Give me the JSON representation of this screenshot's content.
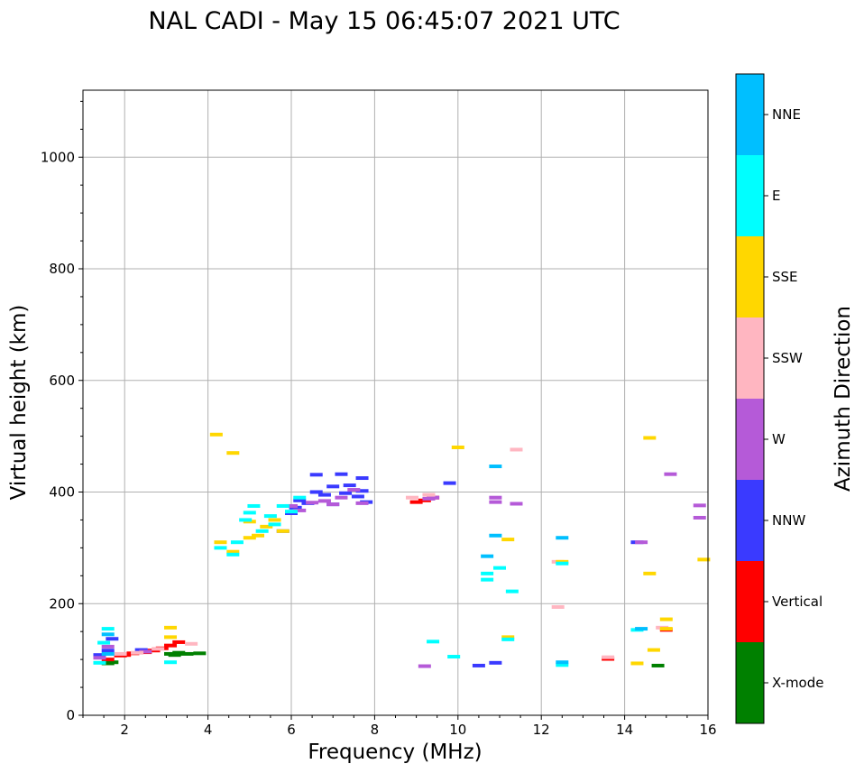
{
  "chart_data": {
    "type": "scatter",
    "title": "NAL CADI - May 15 06:45:07 2021 UTC",
    "xlabel": "Frequency (MHz)",
    "ylabel": "Virtual height (km)",
    "xlim": [
      1,
      16
    ],
    "ylim": [
      0,
      1120
    ],
    "xticks": [
      2,
      4,
      6,
      8,
      10,
      12,
      14,
      16
    ],
    "yticks": [
      0,
      200,
      400,
      600,
      800,
      1000
    ],
    "grid": true,
    "legend": {
      "title": "Azimuth Direction",
      "placement": "right colorbar",
      "entries": [
        {
          "name": "X-mode",
          "color": "#008000"
        },
        {
          "name": "Vertical",
          "color": "#ff0000"
        },
        {
          "name": "NNW",
          "color": "#3a3aff"
        },
        {
          "name": "W",
          "color": "#b55ad8"
        },
        {
          "name": "SSW",
          "color": "#ffb6c1"
        },
        {
          "name": "SSE",
          "color": "#ffd700"
        },
        {
          "name": "E",
          "color": "#00ffff"
        },
        {
          "name": "NNE",
          "color": "#00bfff"
        }
      ]
    },
    "series": [
      {
        "name": "X-mode",
        "points": [
          [
            1.6,
            93
          ],
          [
            1.7,
            95
          ],
          [
            3.1,
            110
          ],
          [
            3.2,
            108
          ],
          [
            3.3,
            112
          ],
          [
            3.5,
            110
          ],
          [
            3.8,
            111
          ],
          [
            14.8,
            89
          ]
        ]
      },
      {
        "name": "Vertical",
        "points": [
          [
            1.6,
            100
          ],
          [
            1.9,
            107
          ],
          [
            2.0,
            108
          ],
          [
            2.2,
            111
          ],
          [
            2.5,
            113
          ],
          [
            2.7,
            116
          ],
          [
            2.9,
            120
          ],
          [
            3.1,
            125
          ],
          [
            3.3,
            131
          ],
          [
            9.0,
            382
          ],
          [
            9.2,
            385
          ],
          [
            9.4,
            390
          ],
          [
            13.6,
            101
          ],
          [
            15.0,
            153
          ]
        ]
      },
      {
        "name": "NNW",
        "points": [
          [
            1.4,
            108
          ],
          [
            1.6,
            116
          ],
          [
            1.7,
            137
          ],
          [
            2.4,
            117
          ],
          [
            5.8,
            330
          ],
          [
            6.0,
            362
          ],
          [
            6.1,
            372
          ],
          [
            6.2,
            385
          ],
          [
            6.4,
            380
          ],
          [
            6.6,
            431
          ],
          [
            6.6,
            400
          ],
          [
            6.8,
            395
          ],
          [
            7.0,
            410
          ],
          [
            7.0,
            378
          ],
          [
            7.2,
            432
          ],
          [
            7.3,
            398
          ],
          [
            7.4,
            412
          ],
          [
            7.6,
            392
          ],
          [
            7.7,
            402
          ],
          [
            7.7,
            425
          ],
          [
            7.8,
            382
          ],
          [
            9.8,
            416
          ],
          [
            10.5,
            89
          ],
          [
            10.9,
            94
          ],
          [
            14.3,
            310
          ]
        ]
      },
      {
        "name": "W",
        "points": [
          [
            1.4,
            103
          ],
          [
            1.6,
            123
          ],
          [
            2.5,
            114
          ],
          [
            6.0,
            375
          ],
          [
            6.2,
            367
          ],
          [
            6.5,
            381
          ],
          [
            6.8,
            384
          ],
          [
            7.0,
            378
          ],
          [
            7.2,
            390
          ],
          [
            7.5,
            404
          ],
          [
            7.7,
            380
          ],
          [
            9.3,
            388
          ],
          [
            9.4,
            390
          ],
          [
            9.2,
            88
          ],
          [
            10.9,
            390
          ],
          [
            10.9,
            382
          ],
          [
            11.4,
            379
          ],
          [
            14.4,
            310
          ],
          [
            15.1,
            432
          ],
          [
            15.8,
            376
          ],
          [
            15.8,
            354
          ]
        ]
      },
      {
        "name": "SSW",
        "points": [
          [
            1.9,
            110
          ],
          [
            2.3,
            112
          ],
          [
            2.8,
            119
          ],
          [
            3.6,
            128
          ],
          [
            8.9,
            390
          ],
          [
            9.3,
            395
          ],
          [
            11.4,
            476
          ],
          [
            12.4,
            275
          ],
          [
            12.4,
            194
          ],
          [
            13.6,
            104
          ],
          [
            14.9,
            157
          ]
        ]
      },
      {
        "name": "SSE",
        "points": [
          [
            3.1,
            157
          ],
          [
            3.1,
            140
          ],
          [
            4.2,
            503
          ],
          [
            4.3,
            310
          ],
          [
            4.6,
            293
          ],
          [
            4.6,
            470
          ],
          [
            5.0,
            347
          ],
          [
            5.0,
            318
          ],
          [
            5.2,
            322
          ],
          [
            5.4,
            338
          ],
          [
            5.6,
            350
          ],
          [
            5.8,
            330
          ],
          [
            10.0,
            480
          ],
          [
            11.2,
            315
          ],
          [
            11.2,
            140
          ],
          [
            12.5,
            275
          ],
          [
            14.3,
            93
          ],
          [
            14.6,
            497
          ],
          [
            14.6,
            254
          ],
          [
            14.7,
            117
          ],
          [
            15.0,
            172
          ],
          [
            15.0,
            155
          ],
          [
            15.9,
            279
          ]
        ]
      },
      {
        "name": "E",
        "points": [
          [
            1.4,
            94
          ],
          [
            1.5,
            130
          ],
          [
            1.6,
            155
          ],
          [
            3.1,
            95
          ],
          [
            4.3,
            300
          ],
          [
            4.6,
            288
          ],
          [
            4.7,
            310
          ],
          [
            4.9,
            350
          ],
          [
            5.0,
            363
          ],
          [
            5.1,
            375
          ],
          [
            5.3,
            330
          ],
          [
            5.5,
            357
          ],
          [
            5.6,
            342
          ],
          [
            5.8,
            375
          ],
          [
            6.2,
            390
          ],
          [
            6.0,
            365
          ],
          [
            9.4,
            132
          ],
          [
            9.9,
            105
          ],
          [
            10.7,
            254
          ],
          [
            10.7,
            243
          ],
          [
            11.0,
            264
          ],
          [
            11.3,
            222
          ],
          [
            11.2,
            136
          ],
          [
            12.5,
            272
          ],
          [
            12.5,
            90
          ],
          [
            14.3,
            153
          ]
        ]
      },
      {
        "name": "NNE",
        "points": [
          [
            1.6,
            145
          ],
          [
            1.6,
            110
          ],
          [
            10.7,
            285
          ],
          [
            10.9,
            322
          ],
          [
            10.9,
            446
          ],
          [
            12.5,
            318
          ],
          [
            12.5,
            95
          ],
          [
            14.4,
            155
          ]
        ]
      }
    ]
  }
}
